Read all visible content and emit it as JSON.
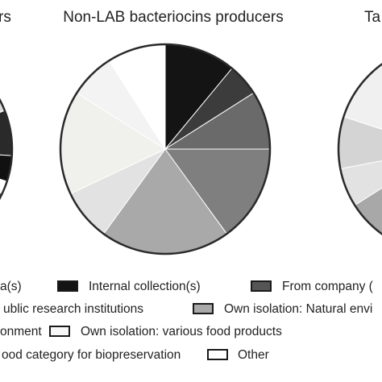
{
  "chart_data": [
    {
      "type": "pie",
      "title": "rs",
      "values": [
        19,
        7,
        4,
        2,
        4,
        64
      ],
      "colors": [
        "#dcdcdc",
        "#2a2a2a",
        "#111111",
        "#ffffff",
        "#666666",
        "#e6e6e6"
      ]
    },
    {
      "type": "pie",
      "title": "Non-LAB bacteriocins producers",
      "values": [
        11,
        5,
        9,
        15,
        20,
        8,
        16,
        7,
        9
      ],
      "colors": [
        "#141414",
        "#3c3c3c",
        "#6a6a6a",
        "#7f7f7f",
        "#a9a9a9",
        "#e2e2e2",
        "#f0f0ec",
        "#f3f3f3",
        "#ffffff"
      ]
    },
    {
      "type": "pie",
      "title": "Ta",
      "values": [
        59,
        7,
        6,
        8,
        20
      ],
      "colors": [
        "#888888",
        "#a8a8a8",
        "#e2e2e2",
        "#d4d4d4",
        "#f0f0f0"
      ]
    }
  ],
  "legend": {
    "items": [
      {
        "label": "a(s)",
        "color": "#f0f0ec"
      },
      {
        "label": "Internal collection(s)",
        "color": "#141414"
      },
      {
        "label": "From company (",
        "color": "#555555"
      },
      {
        "label": "ublic research institutions",
        "color": "#7f7f7f"
      },
      {
        "label": "Own isolation: Natural envi",
        "color": "#a9a9a9"
      },
      {
        "label": "onment",
        "color": "#e2e2e2"
      },
      {
        "label": "Own isolation: various food products",
        "color": "#f7f7f7"
      },
      {
        "label": "ood category for biopreservation",
        "color": "#f3f3f3"
      },
      {
        "label": "Other",
        "color": "#ffffff"
      }
    ]
  }
}
